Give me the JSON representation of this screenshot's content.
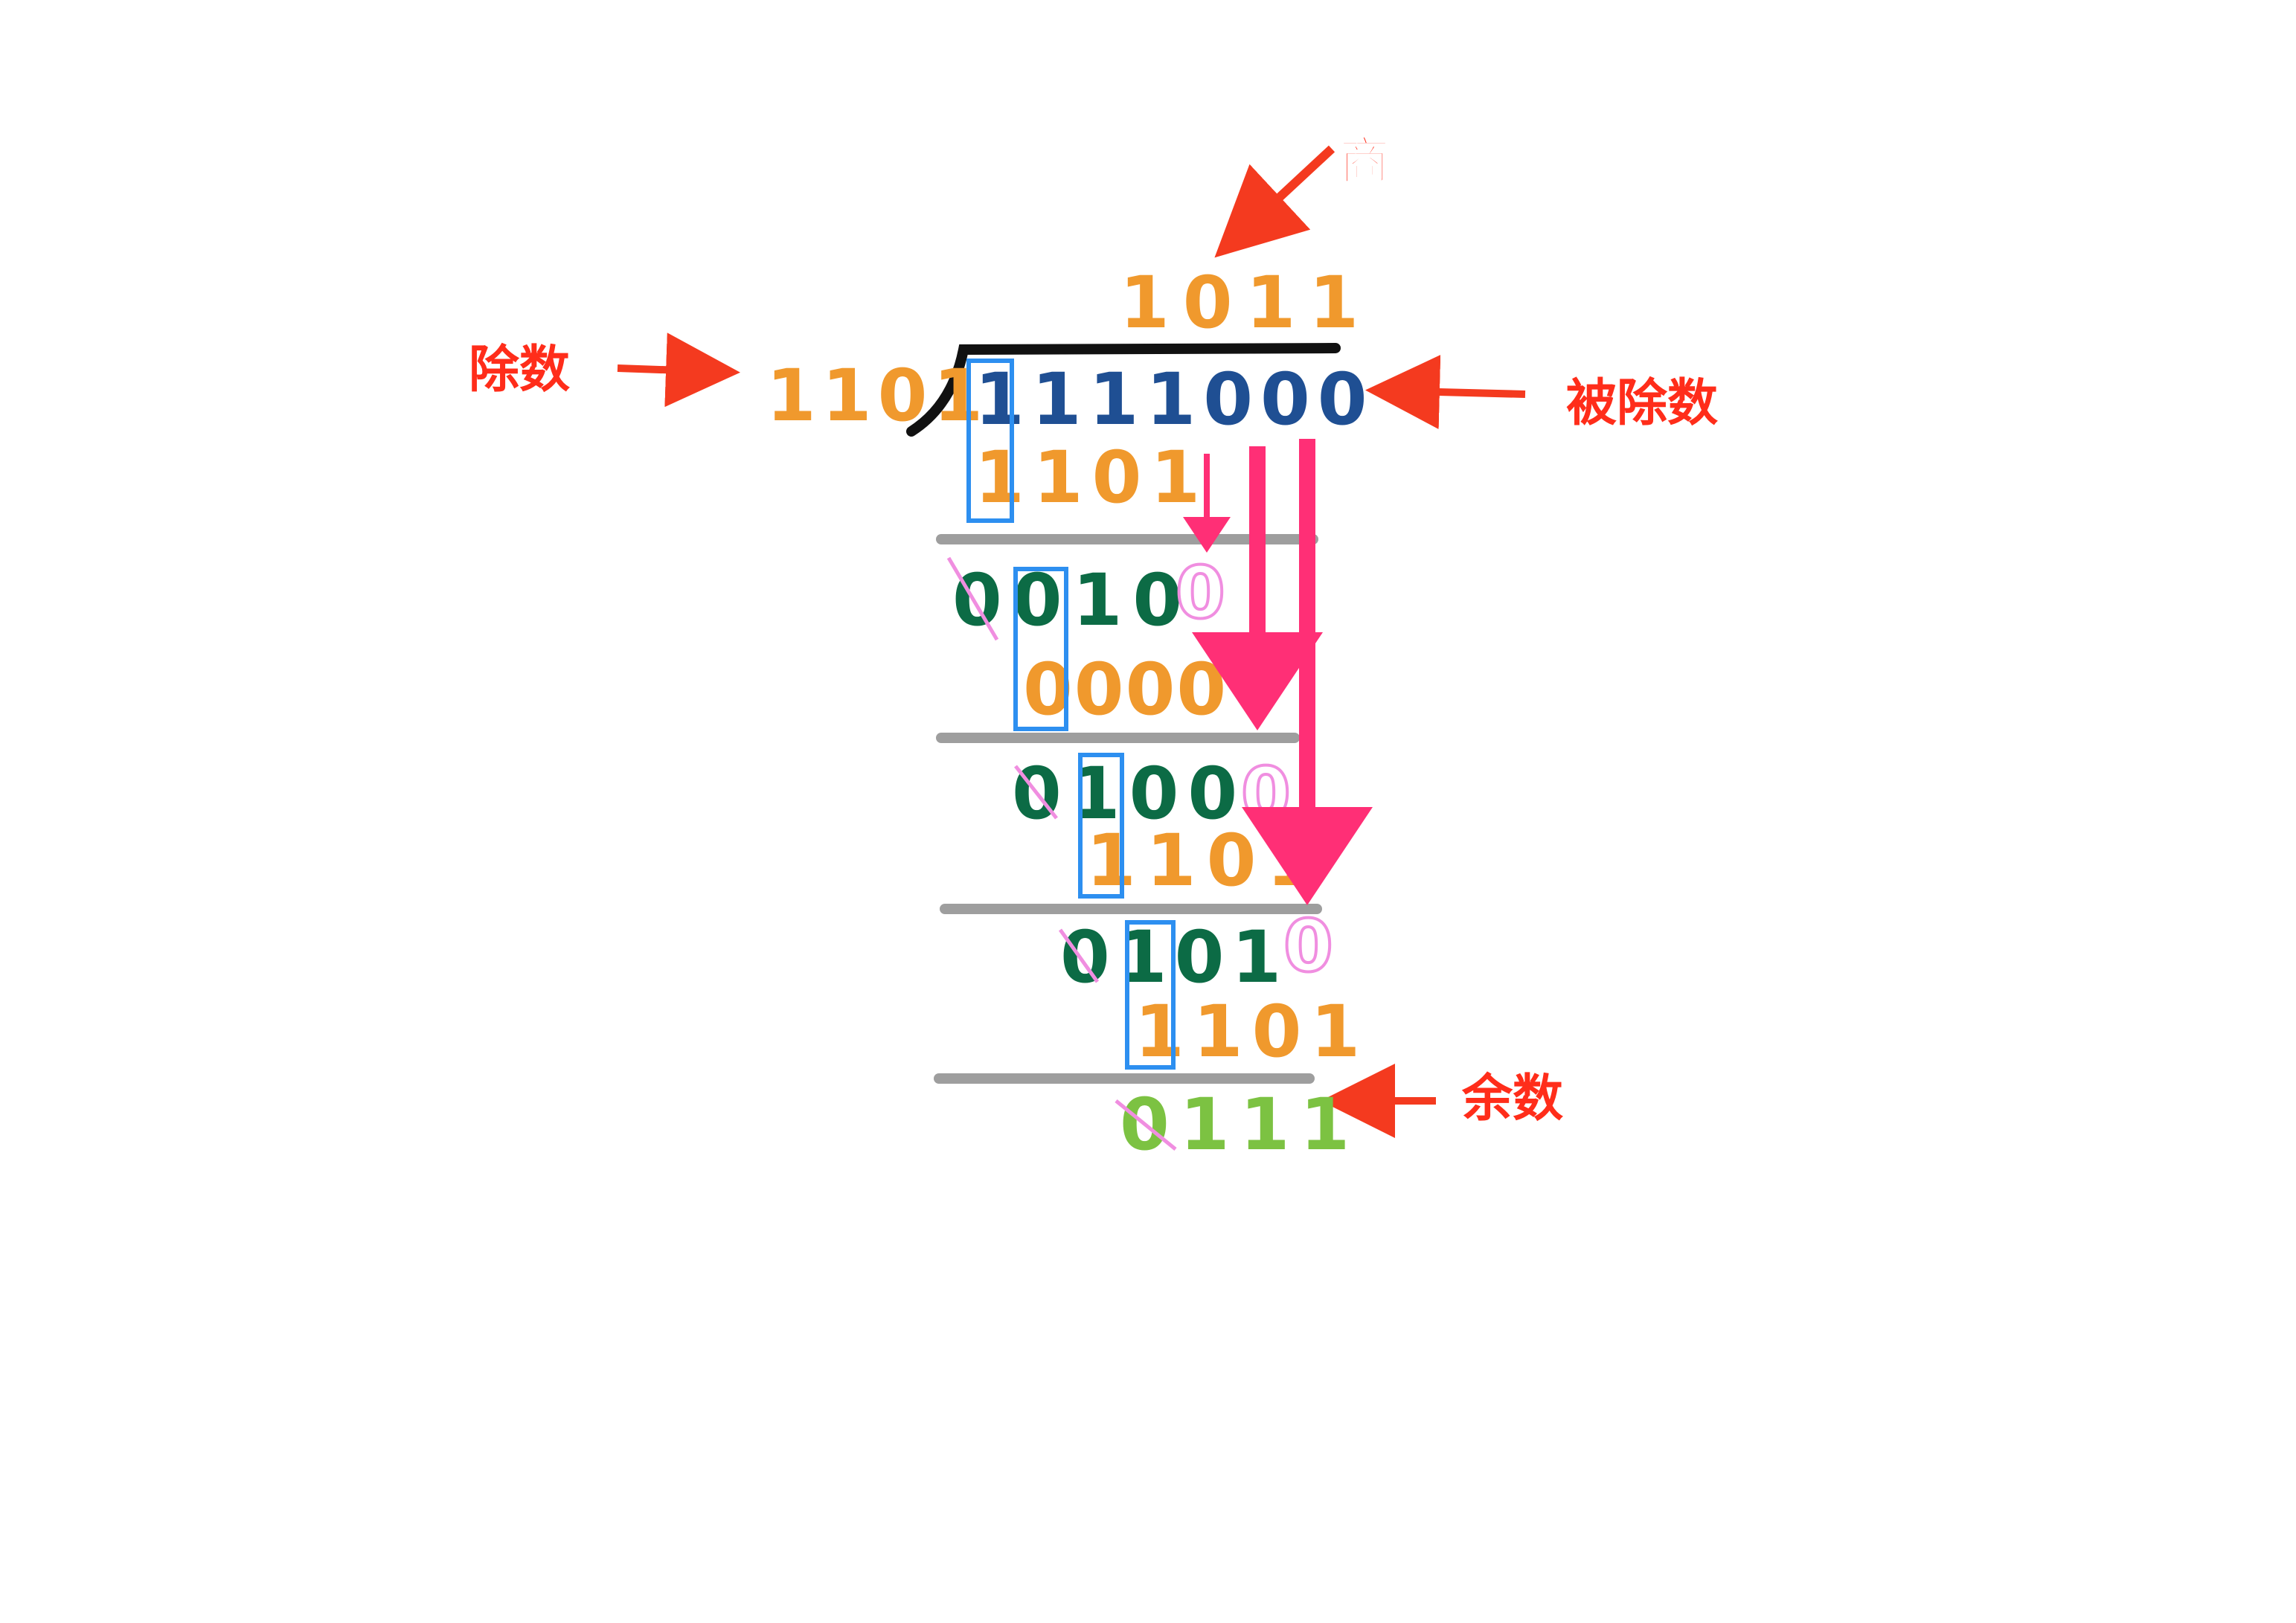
{
  "labels": {
    "quotient": "商",
    "divisor": "除数",
    "dividend": "被除数",
    "remainder": "余数"
  },
  "division": {
    "quotient": "1011",
    "divisor": "1101",
    "dividend": "1111000",
    "steps": [
      {
        "subtrahend": "1101",
        "partial": "0010",
        "carried_digit": "0"
      },
      {
        "subtrahend": "0000",
        "partial": "0100",
        "carried_digit": "0"
      },
      {
        "subtrahend": "1101",
        "partial": "0101",
        "carried_digit": "0"
      },
      {
        "subtrahend": "1101"
      }
    ],
    "remainder": "0111"
  },
  "colors": {
    "label_red": "#ff2d1a",
    "arrow_red": "#f43a1f",
    "orange": "#f0992d",
    "dividend_blue": "#1f4f93",
    "dark_green": "#0c6b45",
    "light_green": "#7cc242",
    "pink_digit": "#f08ee0",
    "pink_arrow": "#ff2f76",
    "box_blue": "#2d8ff0",
    "rule_gray": "#9e9e9e",
    "bracket_black": "#111111"
  }
}
